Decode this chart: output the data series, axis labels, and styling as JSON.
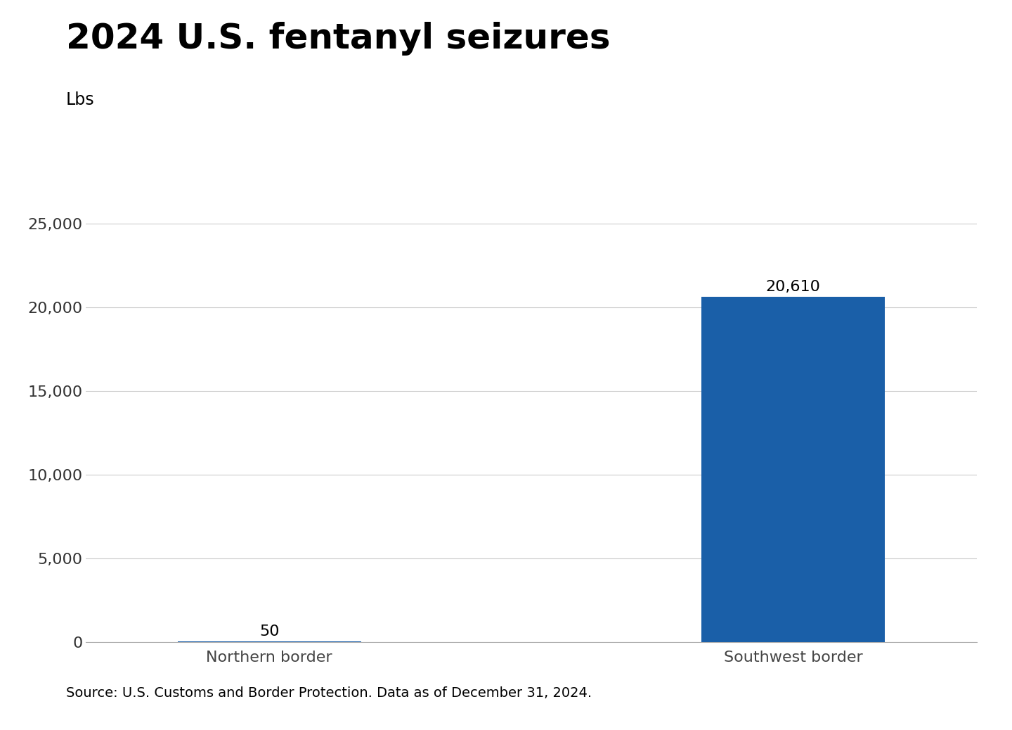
{
  "title": "2024 U.S. fentanyl seizures",
  "ylabel": "Lbs",
  "categories": [
    "Northern border",
    "Southwest border"
  ],
  "values": [
    50,
    20610
  ],
  "bar_colors": [
    "#1a5fa8",
    "#1a5fa8"
  ],
  "bar_labels": [
    "50",
    "20,610"
  ],
  "ylim": [
    0,
    27000
  ],
  "yticks": [
    0,
    5000,
    10000,
    15000,
    20000,
    25000
  ],
  "ytick_labels": [
    "0",
    "5,000",
    "10,000",
    "15,000",
    "20,000",
    "25,000"
  ],
  "background_color": "#ffffff",
  "grid_color": "#cccccc",
  "title_fontsize": 36,
  "ylabel_fontsize": 17,
  "tick_fontsize": 16,
  "bar_label_fontsize": 16,
  "source_text": "Source: U.S. Customs and Border Protection. Data as of December 31, 2024.",
  "source_fontsize": 14
}
